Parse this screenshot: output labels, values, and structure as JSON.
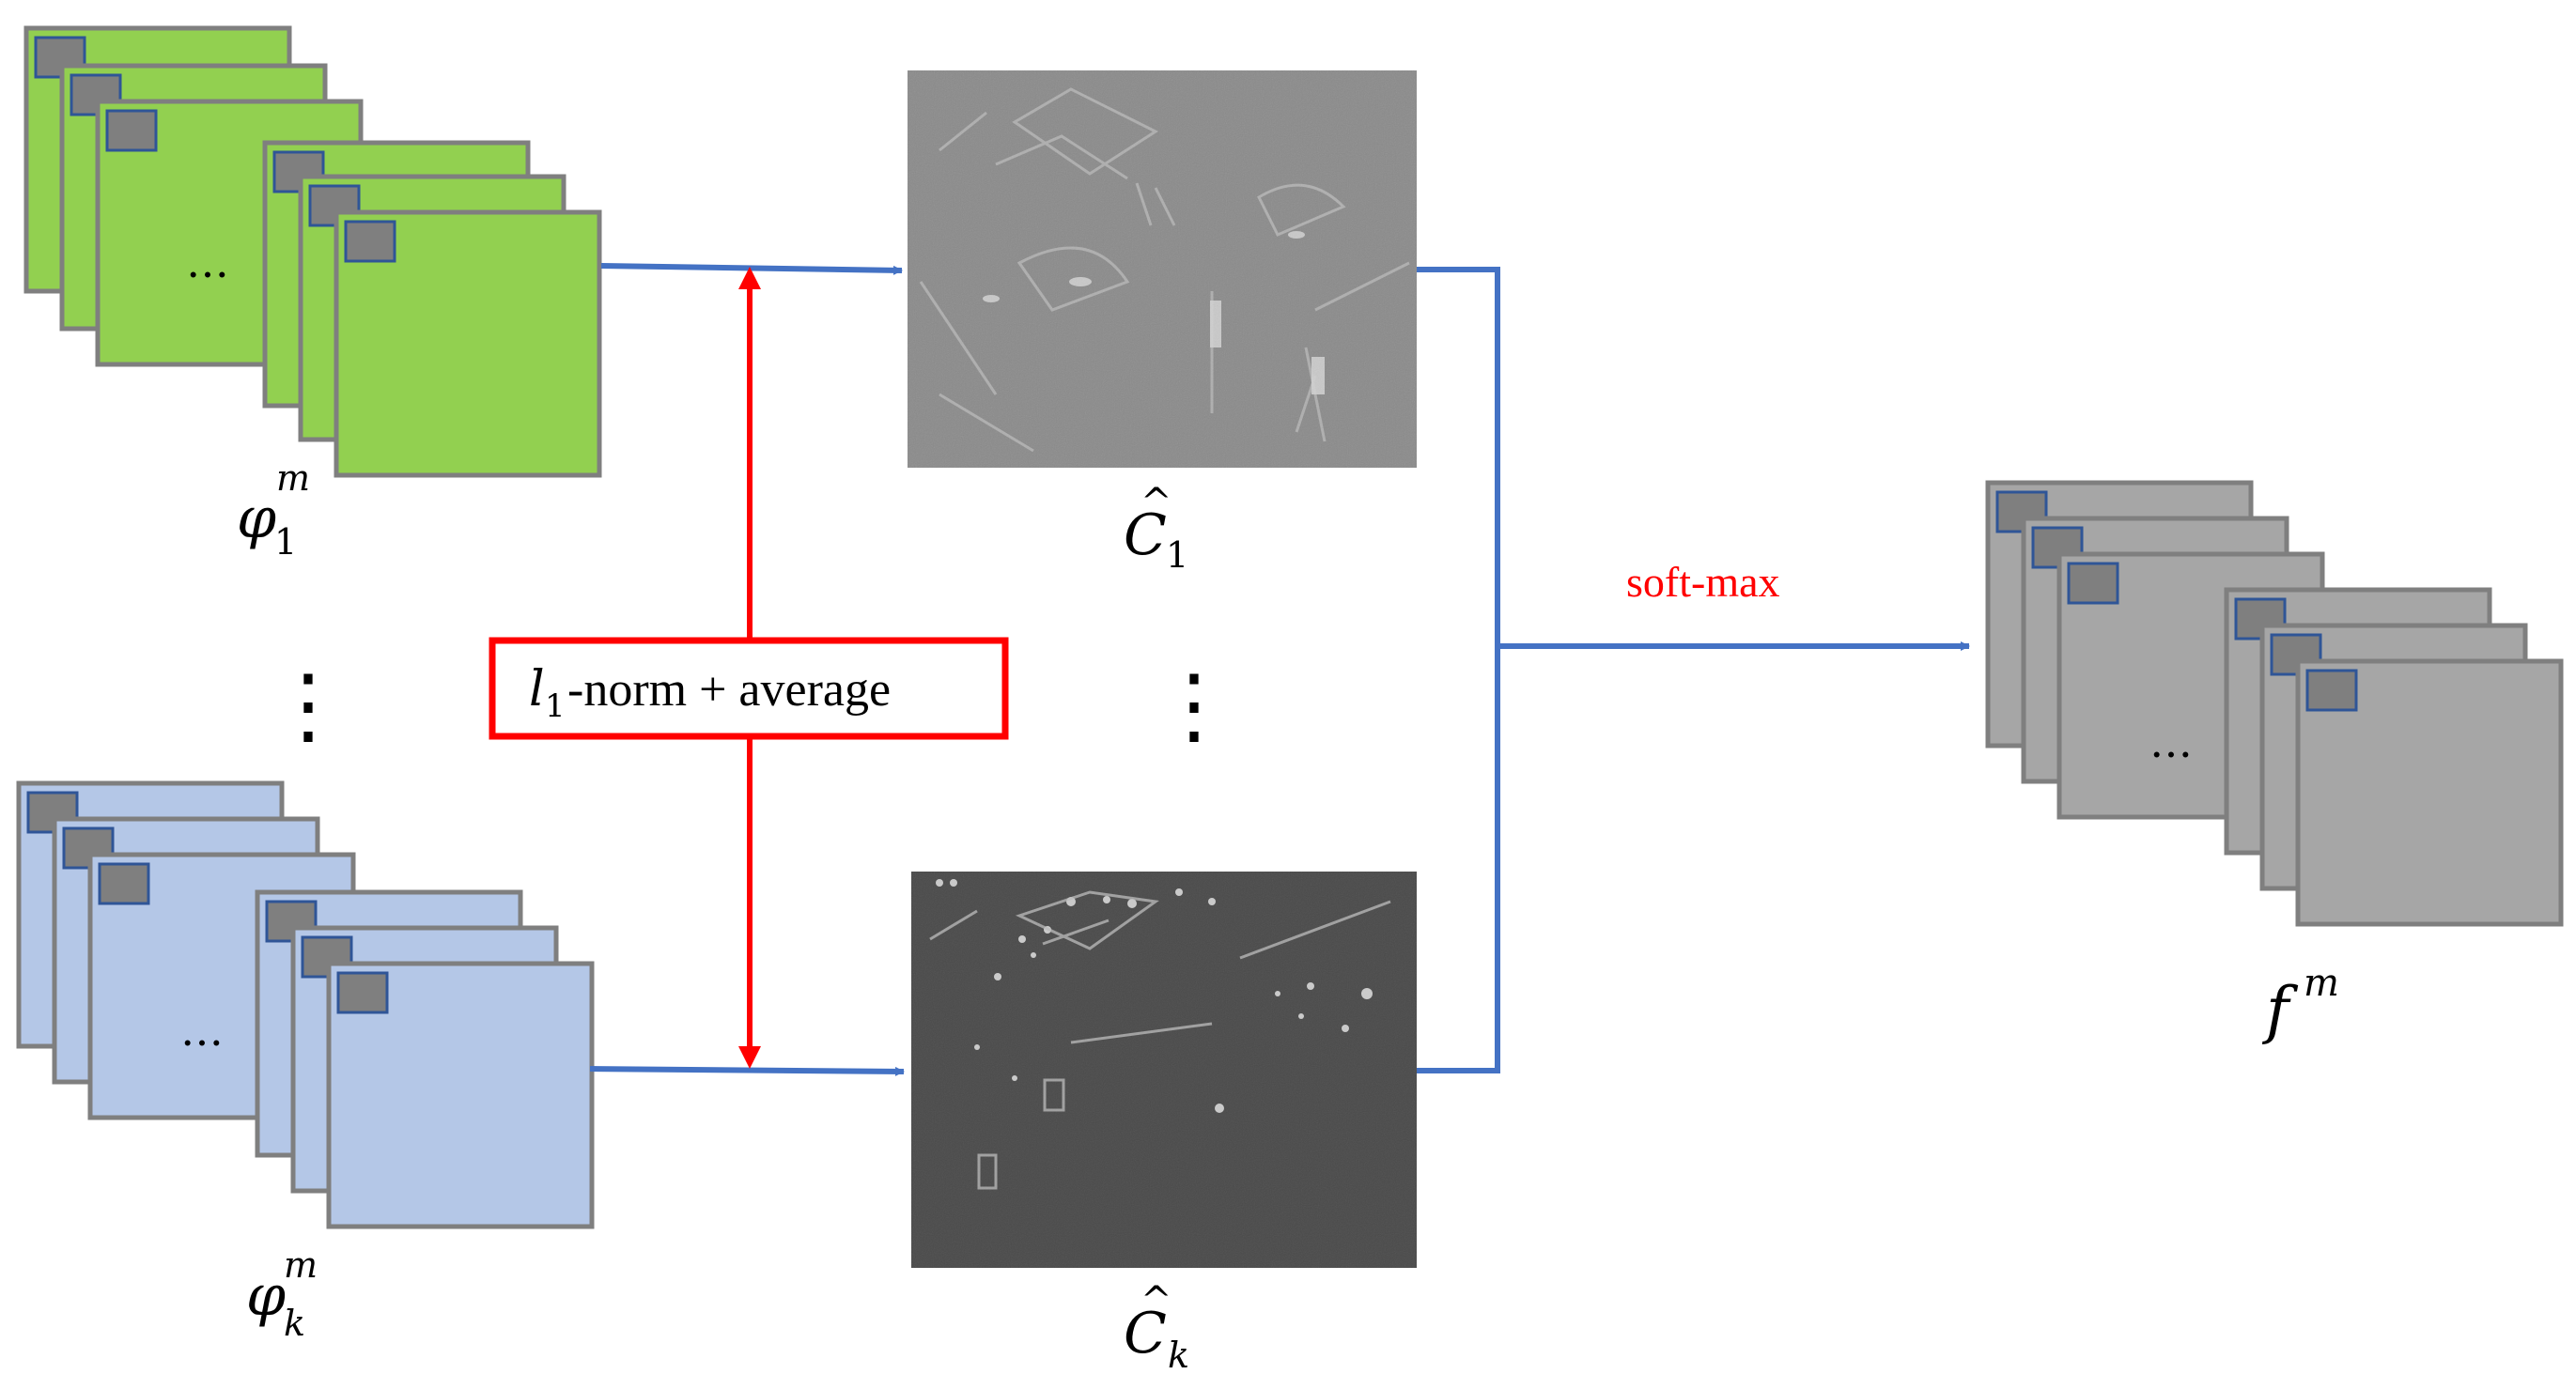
{
  "diagram": {
    "inputs": [
      {
        "label_base": "φ",
        "label_sup": "m",
        "label_sub": "1",
        "fill": "#92d050",
        "ellipsis": "…"
      },
      {
        "label_base": "φ",
        "label_sup": "m",
        "label_sub": "k",
        "fill": "#b4c7e7",
        "ellipsis": "…"
      }
    ],
    "activity_maps": [
      {
        "label_base": "C",
        "label_hat": "^",
        "label_sub": "1"
      },
      {
        "label_base": "C",
        "label_hat": "^",
        "label_sub": "k"
      }
    ],
    "norm_box": {
      "sub_base": "l",
      "sub_index": "1",
      "text": "-norm + average",
      "color": "#ff0000"
    },
    "softmax_label": "soft-max",
    "softmax_color": "#ff0000",
    "output": {
      "label_base": "f",
      "label_sup": "m",
      "fill": "#a6a6a6",
      "ellipsis": "…"
    },
    "connector_color": "#4472c4",
    "stack_border_color": "#7f7f7f",
    "patch_fill": "#7f7f7f",
    "patch_border_color": "#2f5597",
    "vertical_ellipsis": "⋮"
  }
}
